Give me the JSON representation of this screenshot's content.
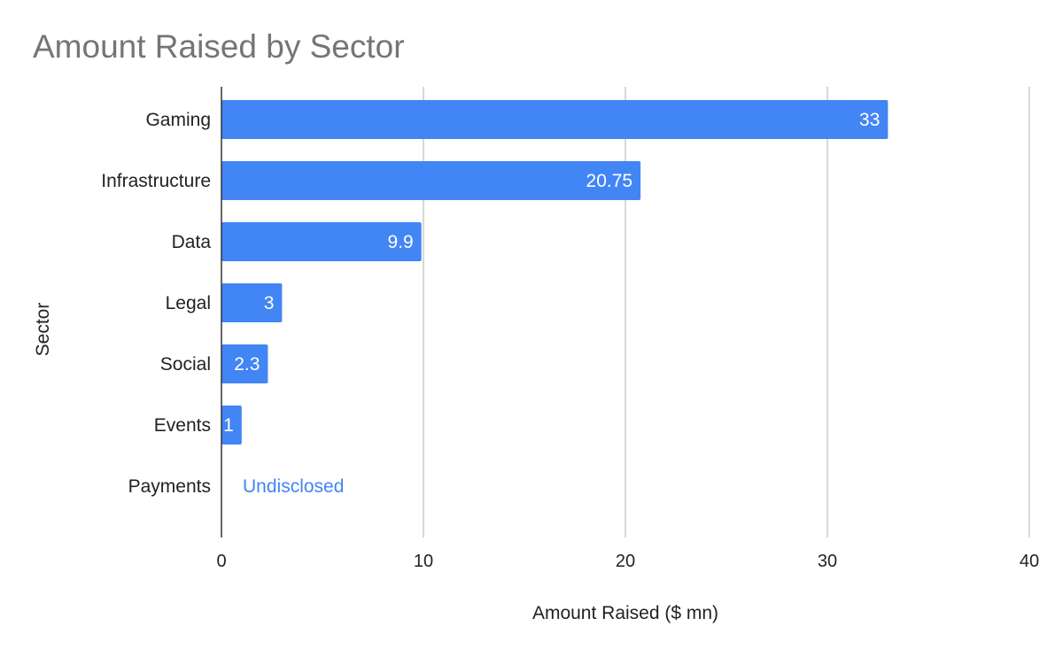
{
  "chart_data": {
    "type": "bar",
    "orientation": "horizontal",
    "title": "Amount Raised by Sector",
    "xlabel": "Amount Raised ($ mn)",
    "ylabel": "Sector",
    "xlim": [
      0,
      40
    ],
    "xticks": [
      "0",
      "10",
      "20",
      "30",
      "40"
    ],
    "grid": true,
    "legend": "none",
    "categories": [
      "Gaming",
      "Infrastructure",
      "Data",
      "Legal",
      "Social",
      "Events",
      "Payments"
    ],
    "values": [
      33,
      20.75,
      9.9,
      3,
      2.3,
      1,
      null
    ],
    "data_labels": [
      "33",
      "20.75",
      "9.9",
      "3",
      "2.3",
      "1",
      "Undisclosed"
    ],
    "bar_color": "#4285f4",
    "label_color_inside": "#ffffff",
    "label_color_outside": "#4285f4",
    "grid_color": "#cccccc",
    "axis_color": "#333333",
    "title_color": "#757575"
  }
}
